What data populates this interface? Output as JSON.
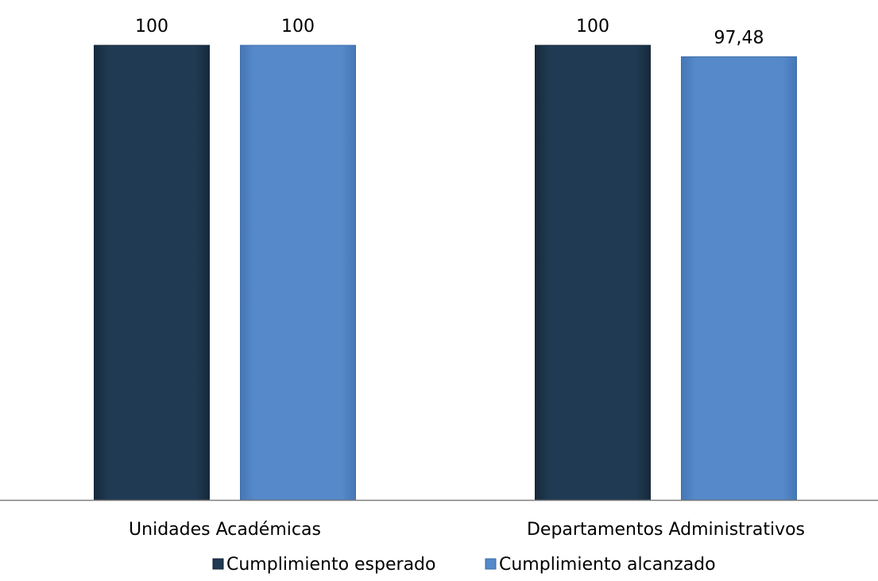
{
  "chart_data": {
    "type": "bar",
    "title": "",
    "xlabel": "",
    "ylabel": "",
    "categories": [
      "Unidades Académicas",
      "Departamentos Administrativos"
    ],
    "series": [
      {
        "name": "Cumplimiento esperado",
        "values": [
          100,
          100
        ],
        "labels": [
          "100",
          "100"
        ],
        "color": "#1f3a52"
      },
      {
        "name": "Cumplimiento alcanzado",
        "values": [
          100,
          97.48
        ],
        "labels": [
          "100",
          "97,48"
        ],
        "color": "#5588c8"
      }
    ],
    "ylim": [
      0,
      100
    ],
    "grid": false,
    "legend": "bottom",
    "data_labels": true
  }
}
